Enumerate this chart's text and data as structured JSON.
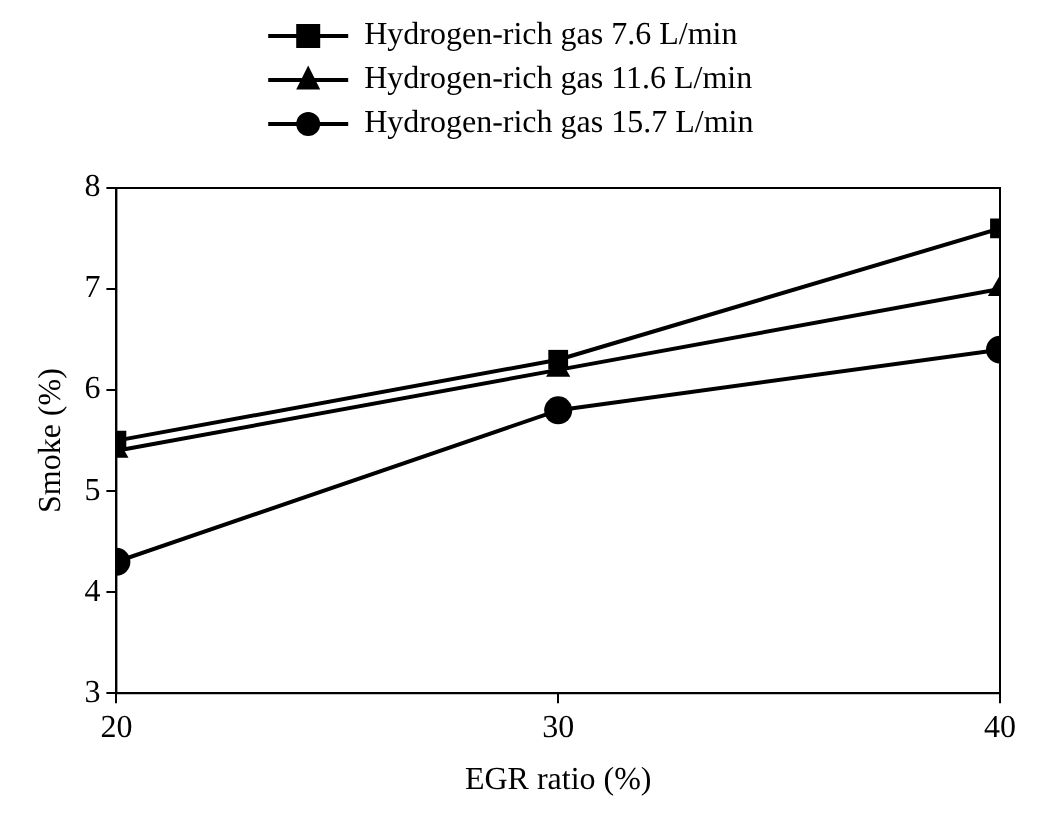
{
  "chart_data": {
    "type": "line",
    "xlabel": "EGR ratio (%)",
    "ylabel": "Smoke (%)",
    "x": [
      20,
      30,
      40
    ],
    "xlim": [
      20,
      40
    ],
    "xticks": [
      20,
      30,
      40
    ],
    "ylim": [
      3,
      8
    ],
    "yticks": [
      3,
      4,
      5,
      6,
      7,
      8
    ],
    "grid": false,
    "legend": "top",
    "line_style": "solid",
    "series": [
      {
        "name": "Hydrogen-rich gas 7.6 L/min",
        "color": "#000000",
        "marker": "square",
        "values": [
          5.5,
          6.3,
          7.6
        ]
      },
      {
        "name": "Hydrogen-rich gas 11.6 L/min",
        "color": "#000000",
        "marker": "triangle",
        "values": [
          5.4,
          6.2,
          7.0
        ]
      },
      {
        "name": "Hydrogen-rich gas 15.7 L/min",
        "color": "#000000",
        "marker": "circle",
        "values": [
          4.3,
          5.8,
          6.4
        ]
      }
    ]
  }
}
